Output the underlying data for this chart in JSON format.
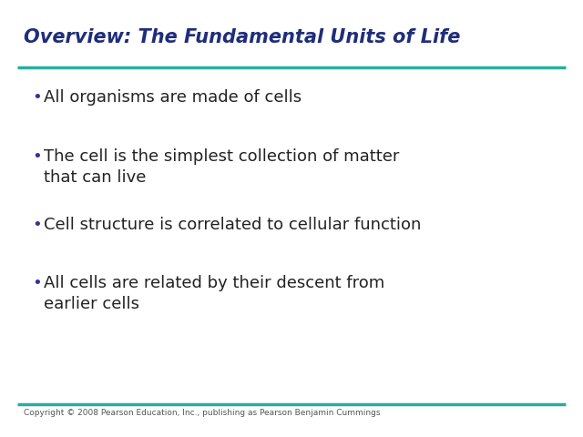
{
  "title": "Overview: The Fundamental Units of Life",
  "title_color": "#1F2D7B",
  "title_fontsize": 15,
  "divider_color": "#2AADA0",
  "divider_linewidth": 2.5,
  "bullet_color": "#333399",
  "bullet_char": "•",
  "bullet_fontsize": 13,
  "bullet_items": [
    "All organisms are made of cells",
    "The cell is the simplest collection of matter\nthat can live",
    "Cell structure is correlated to cellular function",
    "All cells are related by their descent from\nearlier cells"
  ],
  "footer_text": "Copyright © 2008 Pearson Education, Inc., publishing as Pearson Benjamin Cummings",
  "footer_fontsize": 6.5,
  "footer_color": "#555555",
  "background_color": "#FFFFFF"
}
